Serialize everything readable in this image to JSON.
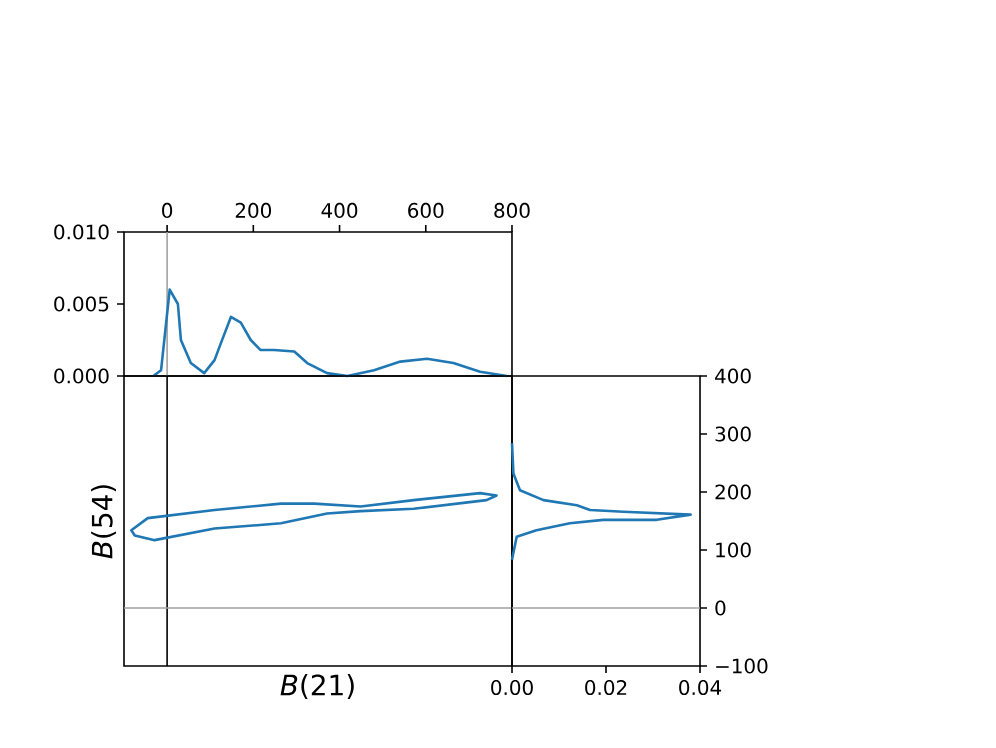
{
  "chart_data": [
    {
      "type": "line",
      "color": "#1f77b4",
      "xlim": [
        -100,
        800
      ],
      "xticks": [
        0,
        200,
        400,
        600,
        800
      ],
      "ylim": [
        0,
        0.01
      ],
      "yticks": [
        {
          "value": 0,
          "label": "0.000"
        },
        {
          "value": 0.005,
          "label": "0.005"
        },
        {
          "value": 0.01,
          "label": "0.010"
        }
      ],
      "x": [
        -32,
        -14,
        6,
        25,
        32,
        55,
        86,
        110,
        125,
        148,
        171,
        194,
        217,
        248,
        295,
        325,
        371,
        418,
        480,
        541,
        603,
        664,
        726,
        788
      ],
      "values": [
        0,
        0.0004,
        0.006,
        0.005,
        0.0025,
        0.0009,
        0.0002,
        0.0011,
        0.0023,
        0.0041,
        0.0037,
        0.0025,
        0.0018,
        0.0018,
        0.0017,
        0.0009,
        0.0002,
        0,
        0.0004,
        0.001,
        0.0012,
        0.0009,
        0.0003,
        0
      ],
      "ref_lines": [
        {
          "axis": "x",
          "value": 0,
          "color": "#a0a0a0"
        }
      ]
    },
    {
      "type": "line",
      "xlabel": "*B*(21)",
      "ylabel": "*B*(54)",
      "xlim": [
        -100,
        800
      ],
      "ylim": [
        -100,
        400
      ],
      "ref_lines": [
        {
          "axis": "x",
          "value": 0,
          "color": "#000000"
        },
        {
          "axis": "y",
          "value": 0,
          "color": "#a0a0a0"
        }
      ]
    },
    {
      "type": "line",
      "color": "#1f77b4",
      "xlim": [
        0,
        0.04
      ],
      "xticks": [
        {
          "value": 0,
          "label": "0.00"
        },
        {
          "value": 0.02,
          "label": "0.02"
        },
        {
          "value": 0.04,
          "label": "0.04"
        }
      ],
      "ylim": [
        -100,
        400
      ],
      "yticks": [
        {
          "value": -100,
          "label": "−100"
        },
        0,
        100,
        200,
        300,
        400
      ],
      "x": [
        0,
        0.0003,
        0.0017,
        0.0067,
        0.0138,
        0.0166,
        0.0237,
        0.038,
        0.0308,
        0.0194,
        0.0123,
        0.0052,
        0.001,
        0
      ],
      "values": [
        284,
        232,
        203,
        186,
        177,
        169,
        166,
        161,
        152,
        152,
        146,
        134,
        123,
        83
      ],
      "ref_lines": [
        {
          "axis": "y",
          "value": 0,
          "color": "#a0a0a0"
        }
      ]
    }
  ]
}
